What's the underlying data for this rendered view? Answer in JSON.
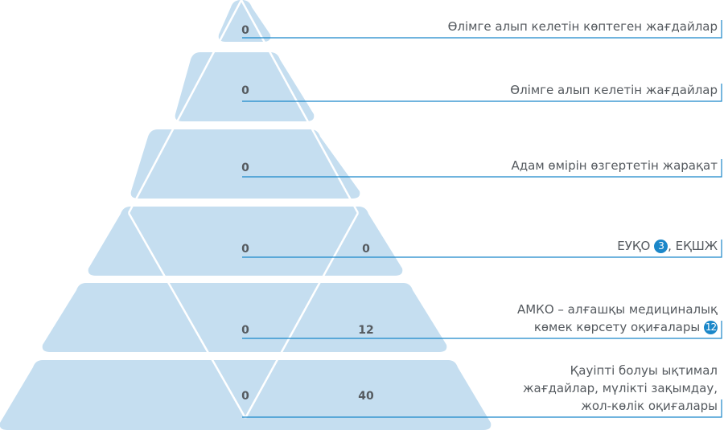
{
  "tiers": [
    {
      "left_value": "0",
      "right_value": "",
      "label_lines": [
        "Өлімге алып келетін көптеген жағдайлар"
      ],
      "badge": ""
    },
    {
      "left_value": "0",
      "right_value": "",
      "label_lines": [
        "Өлімге алып келетін жағдайлар"
      ],
      "badge": ""
    },
    {
      "left_value": "0",
      "right_value": "",
      "label_lines": [
        "Адам өмірін өзгертетін жарақат"
      ],
      "badge": ""
    },
    {
      "left_value": "0",
      "right_value": "0",
      "label_lines": [
        "ЕУҚО",
        ", ЕҚШЖ"
      ],
      "badge": "3"
    },
    {
      "left_value": "0",
      "right_value": "12",
      "label_lines": [
        "АМКО – алғашқы медициналық",
        "көмек көрсету оқиғалары"
      ],
      "badge": "12"
    },
    {
      "left_value": "0",
      "right_value": "40",
      "label_lines": [
        "Қауіпті болуы ықтимал",
        "жағдайлар, мүлікті зақымдау,",
        "жол-көлік оқиғалары"
      ],
      "badge": ""
    }
  ],
  "colors": {
    "fill": "#c5def0",
    "stroke": "#ffffff",
    "line": "#1b87c9",
    "text": "#555a5f"
  }
}
